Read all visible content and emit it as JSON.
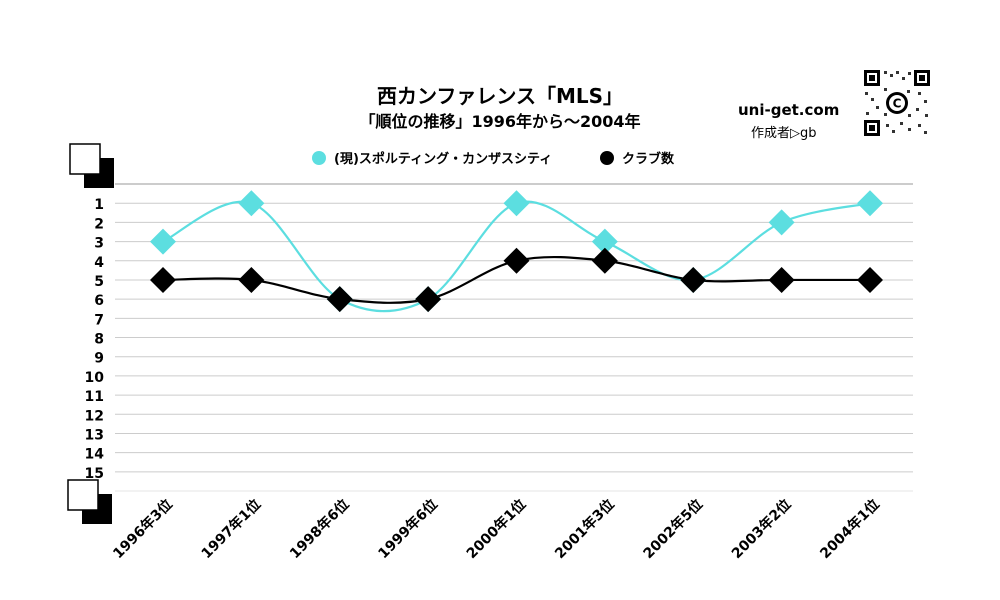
{
  "header": {
    "title": "西カンファレンス「MLS」",
    "subtitle": "「順位の推移」1996年から～2004年",
    "site": "uni-get.com",
    "author": "作成者▷gb"
  },
  "colors": {
    "series_a": "#5CDEE0",
    "series_b": "#000000",
    "grid": "#cccccc"
  },
  "chart_data": {
    "type": "line",
    "title": "西カンファレンス「MLS」",
    "subtitle": "「順位の推移」1996年から～2004年",
    "categories": [
      "1996年3位",
      "1997年1位",
      "1998年6位",
      "1999年6位",
      "2000年1位",
      "2001年3位",
      "2002年5位",
      "2003年2位",
      "2004年1位"
    ],
    "y_ticks": [
      "1",
      "2",
      "3",
      "4",
      "5",
      "6",
      "7",
      "8",
      "9",
      "10",
      "11",
      "12",
      "13",
      "14",
      "15"
    ],
    "ylim": [
      0,
      16
    ],
    "y_inverted": true,
    "grid": true,
    "legend_position": "top",
    "series": [
      {
        "name": "(現)スポルティング・カンザスシティ",
        "values": [
          3,
          1,
          6,
          6,
          1,
          3,
          5,
          2,
          1
        ],
        "color": "#5CDEE0"
      },
      {
        "name": "クラブ数",
        "values": [
          5,
          5,
          6,
          6,
          4,
          4,
          5,
          5,
          5
        ],
        "color": "#000000"
      }
    ]
  }
}
